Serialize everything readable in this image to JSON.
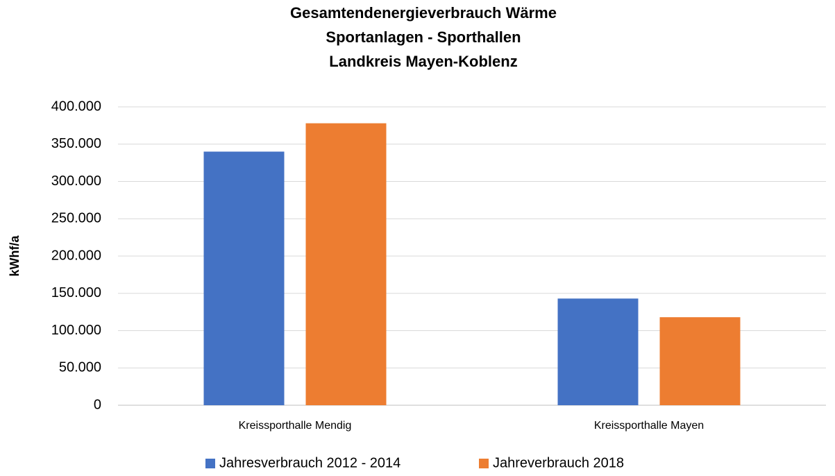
{
  "chart_data": {
    "type": "bar",
    "title": [
      "Gesamtendenergieverbrauch Wärme",
      "Sportanlagen - Sporthallen",
      "Landkreis Mayen-Koblenz"
    ],
    "y_label": "kWhf/a",
    "categories": [
      "Kreissporthalle Mendig",
      "Kreissporthalle Mayen"
    ],
    "series": [
      {
        "name": "Jahresverbrauch 2012 - 2014",
        "color": "#4472c4",
        "values": [
          340000,
          143000
        ]
      },
      {
        "name": "Jahreverbrauch 2018",
        "color": "#ed7d31",
        "values": [
          378000,
          118000
        ]
      }
    ],
    "ylim": [
      0,
      400000
    ],
    "yticks": [
      0,
      {
        "value": 50000,
        "label": "50.000"
      },
      {
        "value": 100000,
        "label": "100.000"
      },
      {
        "value": 150000,
        "label": "150.000"
      },
      {
        "value": 200000,
        "label": "200.000"
      },
      {
        "value": 250000,
        "label": "250.000"
      },
      {
        "value": 300000,
        "label": "300.000"
      },
      {
        "value": 350000,
        "label": "350.000"
      },
      {
        "value": 400000,
        "label": "400.000"
      }
    ],
    "grid": true,
    "legend": "bottom"
  }
}
